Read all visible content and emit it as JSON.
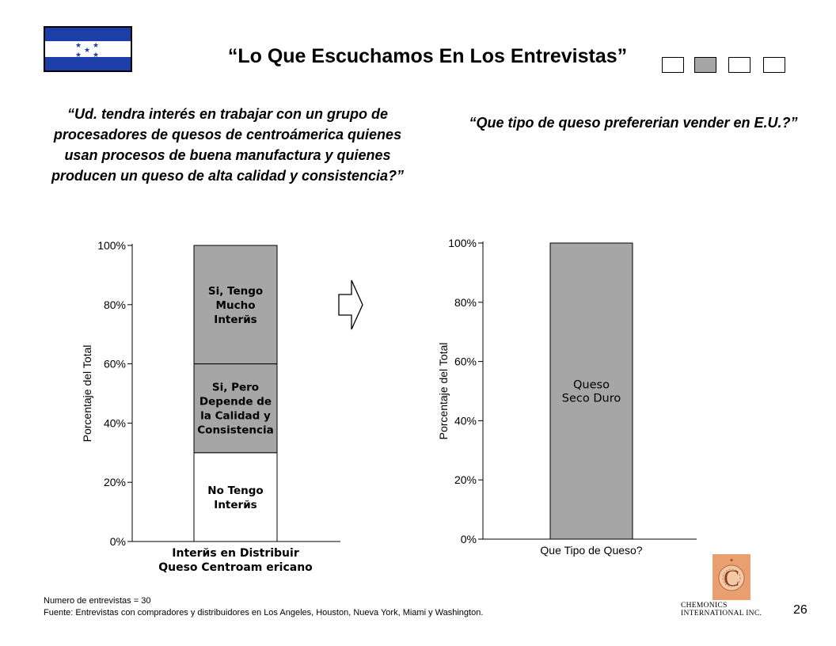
{
  "header": {
    "title": "“Lo Que Escuchamos En Los Entrevistas”",
    "nav_boxes": [
      {
        "active": false
      },
      {
        "active": true
      },
      {
        "active": false
      },
      {
        "active": false
      }
    ]
  },
  "questions": {
    "left": "“Ud. tendra interés en trabajar con un grupo de procesadores de quesos de centroámerica quienes usan procesos de buena manufactura y quienes producen un queso de alta calidad y consistencia?”",
    "right": "“Que tipo de queso prefererian vender en E.U.?”"
  },
  "chart_data": [
    {
      "type": "bar",
      "stacked": true,
      "categories": [
        "Interйs en Distribuir Queso Centroamericano"
      ],
      "category_lines": [
        "Interйs en Distribuir",
        "Queso Centroam ericano"
      ],
      "series": [
        {
          "name": "No Tengo Interйs",
          "label_lines": [
            "No Tengo",
            "Interйs"
          ],
          "values": [
            30
          ],
          "color": "#ffffff"
        },
        {
          "name": "Si, Pero Depende de la Calidad y Consistencia",
          "label_lines": [
            "Si, Pero",
            "Depende de",
            "la Calidad y",
            "Consistencia"
          ],
          "values": [
            30
          ],
          "color": "#a6a6a6"
        },
        {
          "name": "Si, Tengo Mucho Interйs",
          "label_lines": [
            "Si, Tengo",
            "Mucho",
            "Interйs"
          ],
          "values": [
            40
          ],
          "color": "#a6a6a6"
        }
      ],
      "ylabel": "Porcentaje del Total",
      "ylim": [
        0,
        100
      ],
      "yticks": [
        "0%",
        "20%",
        "40%",
        "60%",
        "80%",
        "100%"
      ],
      "grid": false
    },
    {
      "type": "bar",
      "categories": [
        "Que Tipo de Queso?"
      ],
      "category_lines": [
        "Que Tipo de Queso?"
      ],
      "series": [
        {
          "name": "Queso Seco Duro",
          "label_lines": [
            "Queso",
            "Seco Duro"
          ],
          "values": [
            100
          ],
          "color": "#a6a6a6"
        }
      ],
      "ylabel": "Porcentaje del Total",
      "ylim": [
        0,
        100
      ],
      "yticks": [
        "0%",
        "20%",
        "40%",
        "60%",
        "80%",
        "100%"
      ],
      "grid": false
    }
  ],
  "footer": {
    "interviews": "Numero de entrevistas = 30",
    "source": "Fuente:  Entrevistas con compradores y distribuidores en Los Angeles, Houston, Nueva York, Miami y Washington."
  },
  "company": {
    "name": "CHEMONICS INTERNATIONAL INC."
  },
  "page_number": "26"
}
